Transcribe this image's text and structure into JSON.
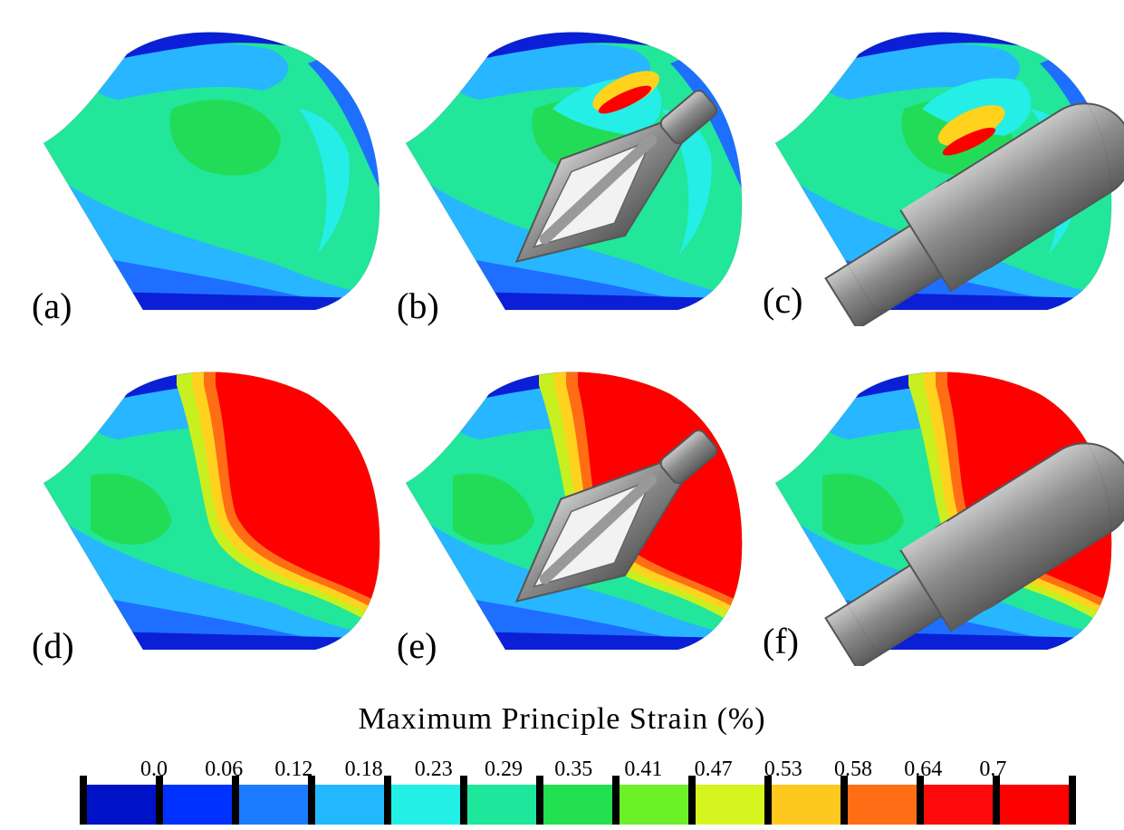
{
  "panels": [
    {
      "label": "(a)",
      "variant": "light",
      "implant": "none"
    },
    {
      "label": "(b)",
      "variant": "light",
      "implant": "cage"
    },
    {
      "label": "(c)",
      "variant": "light",
      "implant": "rod"
    },
    {
      "label": "(d)",
      "variant": "heavy",
      "implant": "none"
    },
    {
      "label": "(e)",
      "variant": "heavy",
      "implant": "cage"
    },
    {
      "label": "(f)",
      "variant": "heavy",
      "implant": "rod"
    }
  ],
  "legend": {
    "title": "Maximum Principle Strain (%)",
    "ticks": [
      "0.0",
      "0.06",
      "0.12",
      "0.18",
      "0.23",
      "0.29",
      "0.35",
      "0.41",
      "0.47",
      "0.53",
      "0.58",
      "0.64",
      "0.7"
    ],
    "colors": [
      "#0012c8",
      "#0032ff",
      "#1c7cff",
      "#22b8ff",
      "#22f0e6",
      "#1ee69a",
      "#22e050",
      "#6cf028",
      "#d6f51e",
      "#ffc81e",
      "#ff6e14",
      "#ff0a0a",
      "#ff0000"
    ]
  },
  "colors": {
    "deep_blue": "#0b1fd6",
    "blue": "#1e6fff",
    "light_blue": "#27b6ff",
    "cyan": "#24eee6",
    "teal": "#22e69a",
    "green": "#22dc58",
    "yellow_green": "#c8f020",
    "yellow": "#ffd21e",
    "orange": "#ff6e14",
    "red": "#ff0000",
    "implant": "#8c8c8c"
  }
}
